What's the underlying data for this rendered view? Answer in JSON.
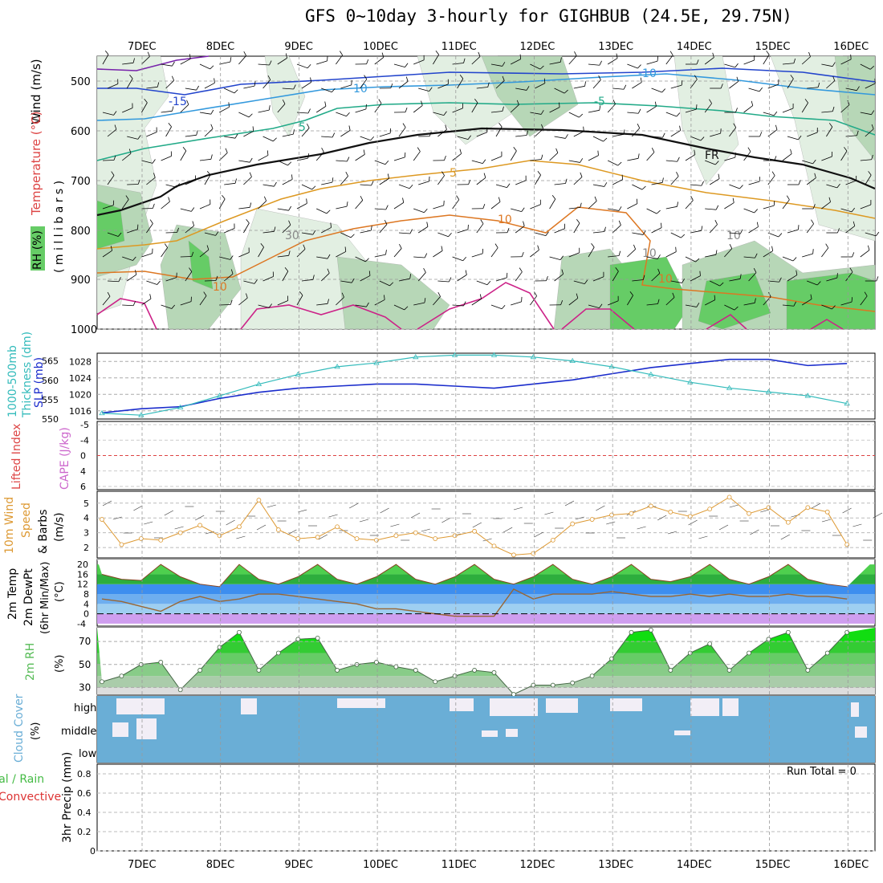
{
  "title": "GFS 0~10day 3-hourly for GIGHBUB (24.5E, 29.75N)",
  "dates": [
    "7DEC",
    "8DEC",
    "9DEC",
    "10DEC",
    "11DEC",
    "12DEC",
    "13DEC",
    "14DEC",
    "15DEC",
    "16DEC"
  ],
  "colors": {
    "rh_light": "#e2efe2",
    "rh_mid": "#b7d7b7",
    "rh_dark": "#9aba9a",
    "rh_green": "#66cc66",
    "slp": "#1a2ccc",
    "thickness": "#33bbbb",
    "lifted": "#dd4444",
    "cape": "#cc66cc",
    "wind": "#dd9933",
    "temp_green": "#33aa33",
    "dew": "#996633",
    "rh2m": "#55bb55",
    "cloud": "#6aaed6",
    "clear": "#f2eef6",
    "precip_green": "#44bb44",
    "precip_red": "#dd3333"
  },
  "panels": {
    "upper": {
      "ylabel_main": "Wind (m/s)",
      "ylabel_temp": "Temperature (°C)",
      "ylabel_rh": "RH (%)",
      "ylabel_mb": "( m i l l i b a r s )",
      "levels": [
        "500",
        "600",
        "700",
        "800",
        "900",
        "1000"
      ],
      "contour_labels": [
        "-15",
        "-10",
        "10",
        "-5",
        "5",
        "5",
        "10",
        "10",
        "FR",
        "30",
        "10",
        "10",
        "10"
      ]
    },
    "slp": {
      "ylabel_thick": "Thickness (dm)",
      "ylabel_thick2": "1000-500mb",
      "ylabel_slp": "SLP (mb)"
    },
    "li": {
      "ylabel_li": "Lifted Index",
      "ylabel_cape": "CAPE (J/kg)",
      "ticks": [
        "-5",
        "-4",
        "0",
        "4",
        "6"
      ]
    },
    "wind": {
      "ylabel1": "10m Wind",
      "ylabel2": "Speed",
      "ylabel3": "& Barbs",
      "ylabel_unit": "(m/s)",
      "ticks": [
        "2",
        "3",
        "4",
        "5"
      ]
    },
    "temp": {
      "ylabel1": "2m Temp",
      "ylabel2": "2m DewPt",
      "ylabel3": "(6hr Min/Max)",
      "ylabel_unit": "(°C)",
      "ticks": [
        "-4",
        "0",
        "4",
        "8",
        "12",
        "16",
        "20"
      ]
    },
    "rh": {
      "ylabel": "2m RH",
      "ylabel_unit": "(%)",
      "ticks": [
        "30",
        "50",
        "70"
      ]
    },
    "cloud": {
      "ylabel": "Cloud Cover",
      "ylabel_unit": "(%)",
      "levels": [
        "high",
        "middle",
        "low"
      ]
    },
    "precip": {
      "ylabel1": "Total / Rain",
      "ylabel2": "Convective",
      "ylabel3": "3hr Precip (mm)",
      "ticks": [
        "0",
        "0.2",
        "0.4",
        "0.6",
        "0.8"
      ],
      "run_total": "Run Total = 0"
    }
  },
  "chart_data": [
    {
      "type": "line",
      "name": "slp",
      "x_unit": "days",
      "x": [
        0,
        0.5,
        1,
        1.5,
        2,
        2.5,
        3,
        3.5,
        4,
        4.5,
        5,
        5.5,
        6,
        6.5,
        7,
        7.5,
        8,
        8.5,
        9,
        9.5
      ],
      "series": [
        {
          "name": "SLP (mb)",
          "values": [
            1015.5,
            1016.5,
            1017,
            1019,
            1020.5,
            1021.5,
            1022,
            1022.5,
            1022.5,
            1022,
            1021.5,
            1022.5,
            1023.5,
            1025,
            1026.5,
            1027.5,
            1028.5,
            1028.5,
            1027,
            1027.5
          ]
        },
        {
          "name": "Thickness (dm)",
          "values": [
            551.5,
            551,
            553,
            556,
            559,
            561.5,
            563.5,
            564.5,
            566,
            566.5,
            566.5,
            566,
            565,
            563.5,
            561.5,
            559.5,
            558,
            557,
            556,
            554
          ]
        }
      ],
      "ylim_slp": [
        1014,
        1030
      ],
      "ylim_thick": [
        550,
        567
      ]
    },
    {
      "type": "line",
      "name": "wind10m",
      "x_unit": "days",
      "x": [
        0,
        0.25,
        0.5,
        0.75,
        1,
        1.25,
        1.5,
        1.75,
        2,
        2.25,
        2.5,
        2.75,
        3,
        3.25,
        3.5,
        3.75,
        4,
        4.25,
        4.5,
        4.75,
        5,
        5.25,
        5.5,
        5.75,
        6,
        6.25,
        6.5,
        6.75,
        7,
        7.25,
        7.5,
        7.75,
        8,
        8.25,
        8.5,
        8.75,
        9,
        9.25,
        9.5
      ],
      "series": [
        {
          "name": "Speed (m/s)",
          "values": [
            3.9,
            2.2,
            2.6,
            2.5,
            3.0,
            3.5,
            2.8,
            3.4,
            5.2,
            3.2,
            2.6,
            2.7,
            3.4,
            2.6,
            2.5,
            2.8,
            3.0,
            2.6,
            2.8,
            3.1,
            2.1,
            1.5,
            1.6,
            2.5,
            3.6,
            3.9,
            4.2,
            4.3,
            4.8,
            4.4,
            4.1,
            4.6,
            5.4,
            4.3,
            4.7,
            3.7,
            4.7,
            4.4,
            2.2
          ]
        }
      ],
      "ylim": [
        1.3,
        5.8
      ]
    },
    {
      "type": "line",
      "name": "temp2m",
      "x_unit": "days",
      "x": [
        0,
        0.25,
        0.5,
        0.75,
        1,
        1.25,
        1.5,
        1.75,
        2,
        2.25,
        2.5,
        2.75,
        3,
        3.25,
        3.5,
        3.75,
        4,
        4.25,
        4.5,
        4.75,
        5,
        5.25,
        5.5,
        5.75,
        6,
        6.25,
        6.5,
        6.75,
        7,
        7.25,
        7.5,
        7.75,
        8,
        8.25,
        8.5,
        8.75,
        9,
        9.25,
        9.5
      ],
      "series": [
        {
          "name": "2m Temp",
          "values": [
            16,
            14,
            13.5,
            20,
            15,
            12,
            11,
            20,
            14,
            12,
            15,
            20,
            14,
            12,
            15,
            20,
            14,
            12,
            15,
            20,
            14,
            12,
            15,
            20,
            14,
            12,
            15,
            20,
            14,
            13,
            15,
            20,
            14,
            12,
            15,
            20,
            14,
            12,
            11
          ]
        },
        {
          "name": "2m DewPt",
          "values": [
            6,
            5,
            3,
            1,
            5,
            7,
            5,
            6,
            8,
            8,
            7,
            6,
            5,
            4,
            2,
            2,
            1,
            0,
            -1,
            -1,
            -1,
            10,
            6,
            8,
            8,
            8,
            9,
            8,
            7,
            7,
            8,
            7,
            8,
            7,
            7,
            8,
            7,
            7,
            6
          ]
        }
      ],
      "ylim": [
        -5,
        22
      ]
    },
    {
      "type": "area",
      "name": "rh2m",
      "x_unit": "days",
      "x": [
        0,
        0.25,
        0.5,
        0.75,
        1,
        1.25,
        1.5,
        1.75,
        2,
        2.25,
        2.5,
        2.75,
        3,
        3.25,
        3.5,
        3.75,
        4,
        4.25,
        4.5,
        4.75,
        5,
        5.25,
        5.5,
        5.75,
        6,
        6.25,
        6.5,
        6.75,
        7,
        7.25,
        7.5,
        7.75,
        8,
        8.25,
        8.5,
        8.75,
        9,
        9.25,
        9.5
      ],
      "series": [
        {
          "name": "2m RH (%)",
          "values": [
            35,
            40,
            50,
            52,
            28,
            45,
            65,
            78,
            45,
            60,
            72,
            73,
            45,
            50,
            52,
            48,
            45,
            35,
            40,
            45,
            43,
            24,
            32,
            32,
            34,
            40,
            55,
            78,
            80,
            45,
            60,
            68,
            45,
            60,
            72,
            78,
            45,
            60,
            78
          ]
        }
      ],
      "ylim": [
        24,
        82
      ]
    },
    {
      "type": "bar",
      "name": "precip3hr",
      "series": [
        {
          "name": "3hr Precip (mm)",
          "values": []
        }
      ],
      "ylim": [
        0,
        0.9
      ]
    }
  ]
}
